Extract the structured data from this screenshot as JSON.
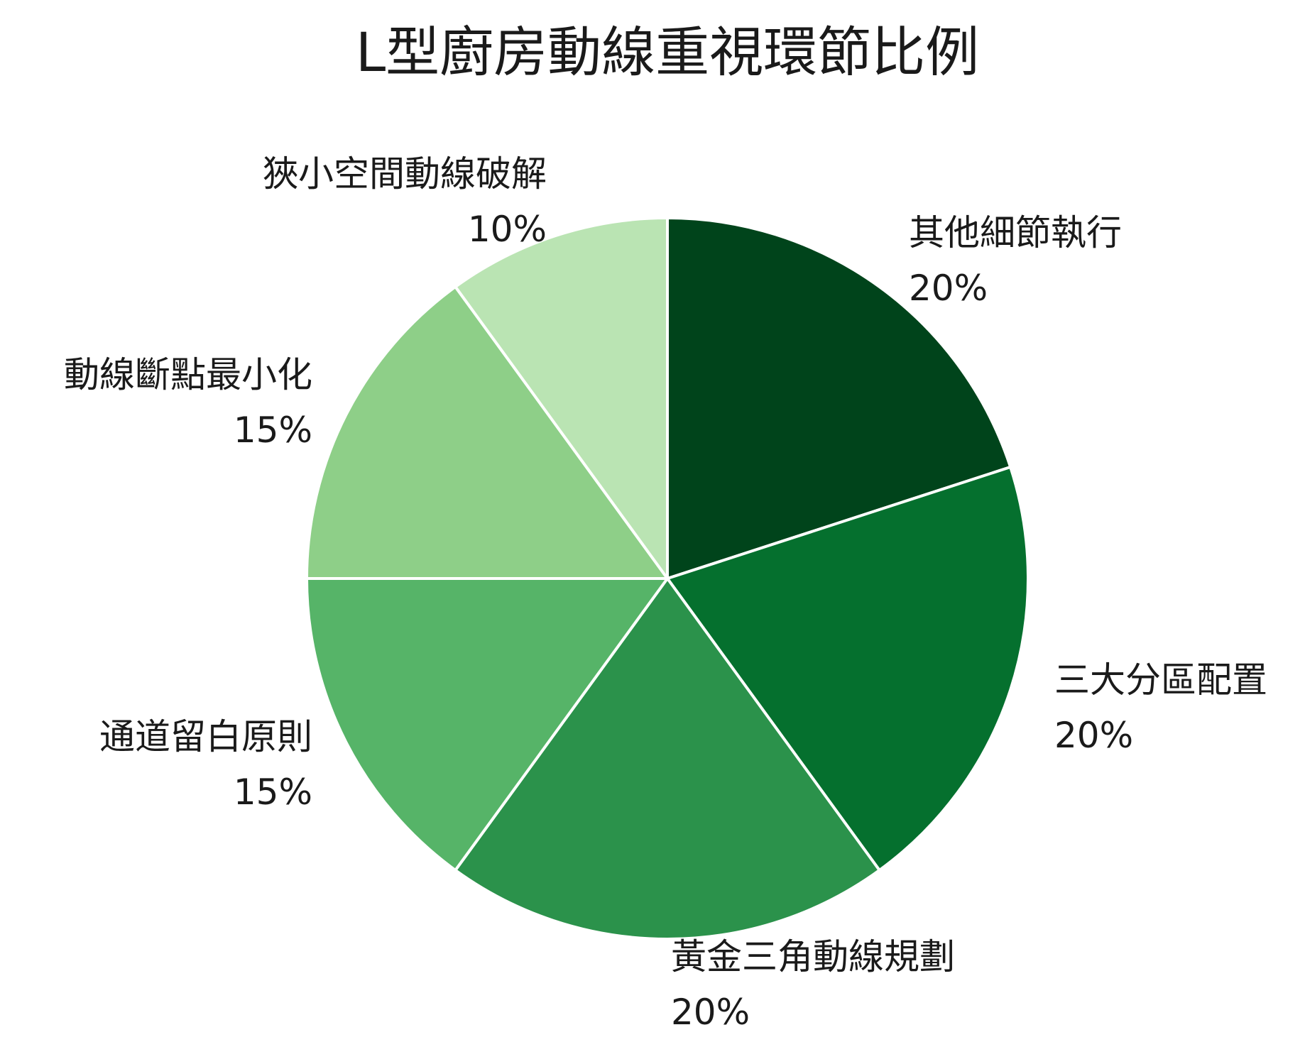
{
  "chart_data": {
    "type": "pie",
    "title": "L型廚房動線重視環節比例",
    "start": "top",
    "direction": "clockwise",
    "slices": [
      {
        "label": "其他細節執行",
        "value": 20,
        "value_label": "20%",
        "color": "#00441b"
      },
      {
        "label": "三大分區配置",
        "value": 20,
        "value_label": "20%",
        "color": "#05702e"
      },
      {
        "label": "黃金三角動線規劃",
        "value": 20,
        "value_label": "20%",
        "color": "#2b924b"
      },
      {
        "label": "通道留白原則",
        "value": 15,
        "value_label": "15%",
        "color": "#56b468"
      },
      {
        "label": "動線斷點最小化",
        "value": 15,
        "value_label": "15%",
        "color": "#8ecf88"
      },
      {
        "label": "狹小空間動線破解",
        "value": 10,
        "value_label": "10%",
        "color": "#bae4b3"
      }
    ]
  }
}
